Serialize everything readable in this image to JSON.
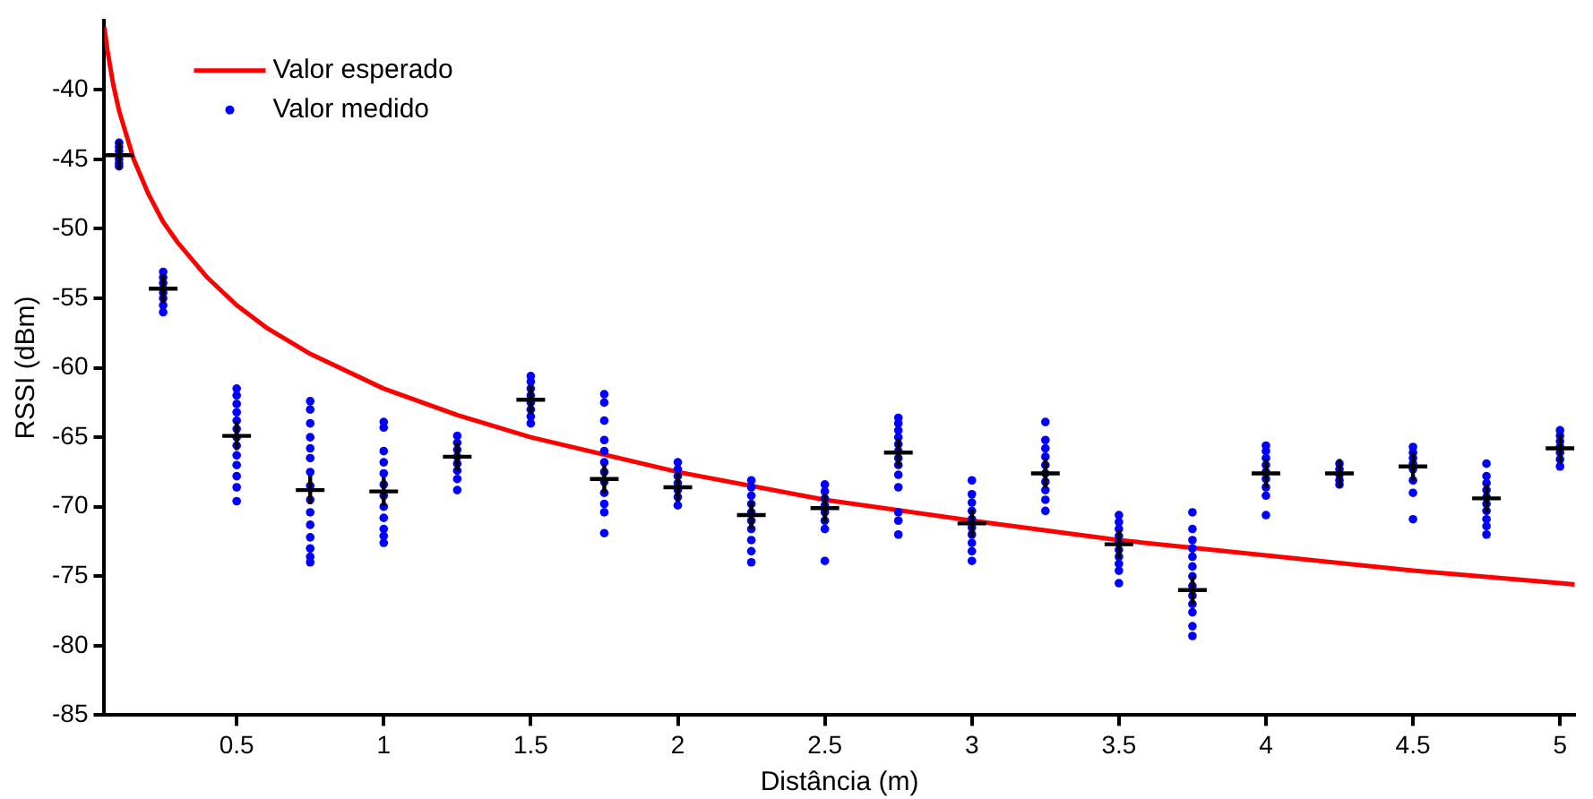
{
  "chart_data": {
    "type": "scatter",
    "xlabel": "Distância (m)",
    "ylabel": "RSSI (dBm)",
    "xlim": [
      0.05,
      5.05
    ],
    "xticks": [
      0.5,
      1,
      1.5,
      2,
      2.5,
      3,
      3.5,
      4,
      4.5,
      5
    ],
    "ylim": [
      -85,
      -35
    ],
    "yticks": [
      -85,
      -80,
      -75,
      -70,
      -65,
      -60,
      -55,
      -50,
      -45,
      -40
    ],
    "grid": false,
    "legend": "top left",
    "series": [
      {
        "name": "Valor esperado",
        "type": "line",
        "color": "#ff0000",
        "marker": "none",
        "x": [
          0.05,
          0.06,
          0.08,
          0.1,
          0.15,
          0.2,
          0.25,
          0.3,
          0.4,
          0.5,
          0.6,
          0.75,
          1,
          1.25,
          1.5,
          2,
          2.5,
          3,
          3.5,
          4,
          4.5,
          5,
          5.05
        ],
        "values": [
          -35.5,
          -37.1,
          -39.6,
          -41.5,
          -45.0,
          -47.5,
          -49.5,
          -51.0,
          -53.5,
          -55.5,
          -57.1,
          -59.0,
          -61.5,
          -63.4,
          -65.0,
          -67.5,
          -69.5,
          -71.0,
          -72.4,
          -73.5,
          -74.6,
          -75.5,
          -75.6
        ]
      },
      {
        "name": "Valor medido",
        "type": "scatter",
        "color": "#0000ff",
        "marker": "circle",
        "x": [
          0.1,
          0.1,
          0.1,
          0.1,
          0.1,
          0.1,
          0.25,
          0.25,
          0.25,
          0.25,
          0.25,
          0.25,
          0.25,
          0.25,
          0.5,
          0.5,
          0.5,
          0.5,
          0.5,
          0.5,
          0.5,
          0.5,
          0.5,
          0.5,
          0.5,
          0.5,
          0.5,
          0.75,
          0.75,
          0.75,
          0.75,
          0.75,
          0.75,
          0.75,
          0.75,
          0.75,
          0.75,
          0.75,
          0.75,
          0.75,
          0.75,
          0.75,
          1,
          1,
          1,
          1,
          1,
          1,
          1,
          1,
          1,
          1,
          1,
          1,
          1.25,
          1.25,
          1.25,
          1.25,
          1.25,
          1.25,
          1.25,
          1.25,
          1.5,
          1.5,
          1.5,
          1.5,
          1.5,
          1.5,
          1.5,
          1.5,
          1.75,
          1.75,
          1.75,
          1.75,
          1.75,
          1.75,
          1.75,
          1.75,
          1.75,
          1.75,
          1.75,
          1.75,
          2,
          2,
          2,
          2,
          2,
          2,
          2,
          2.25,
          2.25,
          2.25,
          2.25,
          2.25,
          2.25,
          2.25,
          2.25,
          2.25,
          2.25,
          2.5,
          2.5,
          2.5,
          2.5,
          2.5,
          2.5,
          2.5,
          2.5,
          2.75,
          2.75,
          2.75,
          2.75,
          2.75,
          2.75,
          2.75,
          2.75,
          2.75,
          2.75,
          2.75,
          2.75,
          2.75,
          3,
          3,
          3,
          3,
          3,
          3,
          3,
          3,
          3,
          3,
          3.25,
          3.25,
          3.25,
          3.25,
          3.25,
          3.25,
          3.25,
          3.25,
          3.25,
          3.25,
          3.5,
          3.5,
          3.5,
          3.5,
          3.5,
          3.5,
          3.5,
          3.5,
          3.5,
          3.5,
          3.75,
          3.75,
          3.75,
          3.75,
          3.75,
          3.75,
          3.75,
          3.75,
          3.75,
          3.75,
          3.75,
          3.75,
          3.75,
          4,
          4,
          4,
          4,
          4,
          4,
          4,
          4,
          4,
          4.25,
          4.25,
          4.25,
          4.25,
          4.25,
          4.5,
          4.5,
          4.5,
          4.5,
          4.5,
          4.5,
          4.5,
          4.5,
          4.75,
          4.75,
          4.75,
          4.75,
          4.75,
          4.75,
          4.75,
          4.75,
          4.75,
          4.75,
          5,
          5,
          5,
          5,
          5,
          5,
          5
        ],
        "values": [
          -43.8,
          -44.1,
          -44.4,
          -45.0,
          -45.3,
          -45.5,
          -53.1,
          -53.5,
          -53.9,
          -54.3,
          -54.6,
          -55.0,
          -55.5,
          -56.0,
          -61.5,
          -62.0,
          -62.6,
          -63.2,
          -63.8,
          -64.4,
          -65.0,
          -65.6,
          -66.3,
          -67.0,
          -67.8,
          -68.6,
          -69.6,
          -62.4,
          -63.0,
          -64.0,
          -65.0,
          -65.8,
          -66.5,
          -67.5,
          -68.5,
          -69.5,
          -70.4,
          -71.3,
          -72.2,
          -73.0,
          -73.6,
          -74.0,
          -63.9,
          -64.3,
          -66.0,
          -66.8,
          -67.6,
          -68.4,
          -69.2,
          -70.0,
          -70.8,
          -71.6,
          -72.1,
          -72.6,
          -64.9,
          -65.4,
          -65.9,
          -66.4,
          -66.9,
          -67.4,
          -68.0,
          -68.8,
          -60.6,
          -61.0,
          -61.5,
          -62.0,
          -62.5,
          -63.0,
          -63.5,
          -64.0,
          -61.9,
          -62.5,
          -63.8,
          -65.2,
          -66.0,
          -66.8,
          -67.5,
          -68.2,
          -69.0,
          -69.8,
          -70.4,
          -71.9,
          -66.8,
          -67.3,
          -67.8,
          -68.3,
          -68.8,
          -69.3,
          -69.9,
          -68.1,
          -68.6,
          -69.2,
          -69.8,
          -70.4,
          -71.0,
          -71.6,
          -72.4,
          -73.2,
          -74.0,
          -68.4,
          -68.9,
          -69.4,
          -69.9,
          -70.4,
          -71.0,
          -71.6,
          -73.9,
          -63.6,
          -64.0,
          -64.5,
          -65.0,
          -65.5,
          -66.0,
          -66.5,
          -67.0,
          -67.7,
          -68.6,
          -70.4,
          -71.0,
          -72.0,
          -68.1,
          -69.1,
          -69.7,
          -70.3,
          -70.9,
          -71.5,
          -72.0,
          -72.6,
          -73.2,
          -73.9,
          -63.9,
          -65.2,
          -65.8,
          -66.4,
          -67.0,
          -67.6,
          -68.2,
          -68.8,
          -69.5,
          -70.3,
          -70.6,
          -71.1,
          -71.6,
          -72.1,
          -72.6,
          -73.1,
          -73.6,
          -74.1,
          -74.6,
          -75.5,
          -70.4,
          -71.6,
          -72.4,
          -73.0,
          -73.6,
          -74.3,
          -75.0,
          -75.7,
          -76.4,
          -77.0,
          -77.6,
          -78.6,
          -79.3,
          -65.6,
          -66.0,
          -66.5,
          -67.0,
          -67.5,
          -68.0,
          -68.6,
          -69.2,
          -70.6,
          -66.9,
          -67.3,
          -67.7,
          -68.1,
          -68.4,
          -65.7,
          -66.1,
          -66.5,
          -66.9,
          -67.3,
          -68.1,
          -69.0,
          -70.9,
          -66.9,
          -67.8,
          -68.3,
          -68.8,
          -69.3,
          -69.8,
          -70.3,
          -70.9,
          -71.4,
          -72.0,
          -64.5,
          -64.9,
          -65.3,
          -65.7,
          -66.1,
          -66.6,
          -67.1
        ]
      },
      {
        "type": "scatter",
        "color": "#000000",
        "marker": "cross",
        "x": [
          0.1,
          0.25,
          0.5,
          0.75,
          1,
          1.25,
          1.5,
          1.75,
          2,
          2.25,
          2.5,
          2.75,
          3,
          3.25,
          3.5,
          3.75,
          4,
          4.25,
          4.5,
          4.75,
          5
        ],
        "values": [
          -44.7,
          -54.3,
          -64.9,
          -68.8,
          -68.9,
          -66.4,
          -62.3,
          -68.0,
          -68.6,
          -70.6,
          -70.1,
          -66.1,
          -71.2,
          -67.6,
          -72.7,
          -76.0,
          -67.6,
          -67.6,
          -67.1,
          -69.4,
          -65.8
        ]
      }
    ]
  }
}
